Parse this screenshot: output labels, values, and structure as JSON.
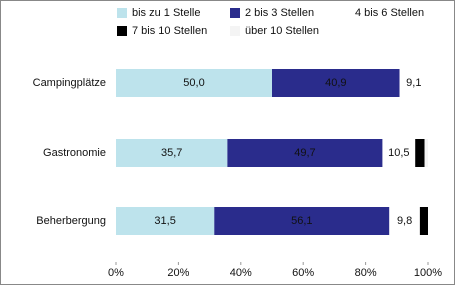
{
  "chart_data": {
    "type": "stacked-bar-horizontal",
    "categories": [
      "Campingplätze",
      "Gastronomie",
      "Beherbergung"
    ],
    "series": [
      {
        "name": "bis zu 1 Stelle",
        "color": "#bde3ec",
        "values": [
          50.0,
          35.7,
          31.5
        ],
        "value_labels": [
          "50,0",
          "35,7",
          "31,5"
        ]
      },
      {
        "name": "2 bis 3 Stellen",
        "color": "#2a2c8c",
        "values": [
          40.9,
          49.7,
          56.1
        ],
        "value_labels": [
          "40,9",
          "49,7",
          "56,1"
        ]
      },
      {
        "name": "4 bis 6 Stellen",
        "color": "#ffffff",
        "values": [
          9.1,
          10.5,
          9.8
        ],
        "value_labels": [
          "9,1",
          "10,5",
          "9,8"
        ]
      },
      {
        "name": "7 bis 10 Stellen",
        "color": "#000000",
        "values": [
          0,
          3.0,
          2.6
        ]
      },
      {
        "name": "über 10 Stellen",
        "color": "#f4f4f4",
        "values": [
          0,
          1.1,
          0
        ]
      }
    ],
    "xlim": [
      0,
      100
    ],
    "xticks": [
      {
        "value": 0,
        "label": "0%"
      },
      {
        "value": 20,
        "label": "20%"
      },
      {
        "value": 40,
        "label": "40%"
      },
      {
        "value": 60,
        "label": "60%"
      },
      {
        "value": 80,
        "label": "80%"
      },
      {
        "value": 100,
        "label": "100%"
      }
    ],
    "grid": false
  }
}
